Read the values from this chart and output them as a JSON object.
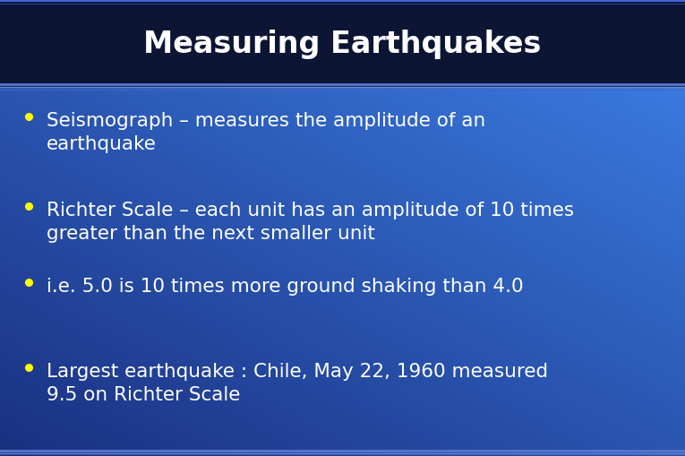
{
  "title": "Measuring Earthquakes",
  "title_color": "#ffffff",
  "title_fontsize": 24,
  "header_bg": "#0d1535",
  "header_border_top": "#3355aa",
  "header_border_bottom": "#4466bb",
  "bullet_color": "#ffff00",
  "text_color": "#ffffff",
  "text_fontsize": 15.5,
  "bullets": [
    "Seismograph – measures the amplitude of an\nearthquake",
    "Richter Scale – each unit has an amplitude of 10 times\ngreater than the next smaller unit",
    "i.e. 5.0 is 10 times more ground shaking than 4.0",
    "Largest earthquake : Chile, May 22, 1960 measured\n9.5 on Richter Scale"
  ],
  "fig_width": 7.65,
  "fig_height": 5.1,
  "dpi": 100
}
